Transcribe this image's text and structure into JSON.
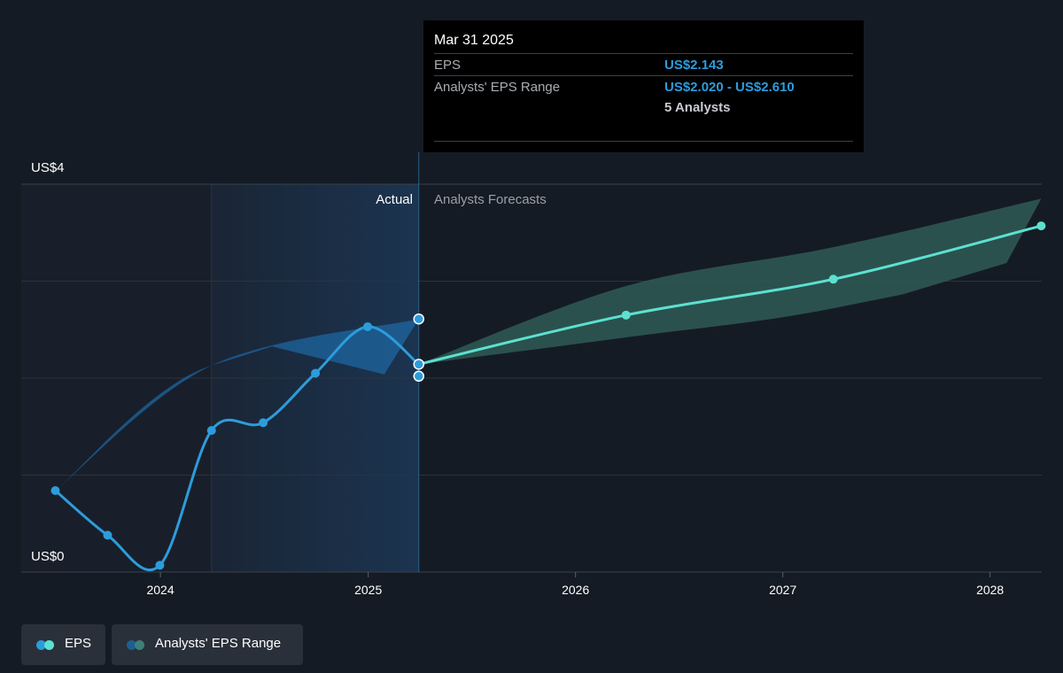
{
  "tooltip": {
    "date": "Mar 31 2025",
    "eps_label": "EPS",
    "eps_value": "US$2.143",
    "range_label": "Analysts' EPS Range",
    "range_value": "US$2.020 - US$2.610",
    "analysts": "5 Analysts"
  },
  "labels": {
    "actual": "Actual",
    "forecast": "Analysts Forecasts"
  },
  "legend": {
    "eps": "EPS",
    "range": "Analysts' EPS Range"
  },
  "colors": {
    "background": "#151b24",
    "actual_line": "#2d9cdb",
    "forecast_line": "#5ce1d0",
    "forecast_band": "#2f5a56",
    "actual_band": "#1e6aa6"
  },
  "chart_data": {
    "type": "line",
    "y_ticks": [
      "US$0",
      "US$4"
    ],
    "ylim": [
      0,
      4
    ],
    "x_ticks": [
      "2024",
      "2025",
      "2026",
      "2027",
      "2028"
    ],
    "xlim": [
      "2023-05-01",
      "2028-04-01"
    ],
    "forecast_start": "2025-03-31",
    "highlight_start": "2024-03-31",
    "series": [
      {
        "name": "EPS",
        "role": "actual",
        "points": [
          {
            "x": "2023-06-30",
            "y": 0.84
          },
          {
            "x": "2023-09-30",
            "y": 0.38
          },
          {
            "x": "2023-12-31",
            "y": 0.07
          },
          {
            "x": "2024-03-31",
            "y": 1.46
          },
          {
            "x": "2024-06-30",
            "y": 1.54
          },
          {
            "x": "2024-09-30",
            "y": 2.05
          },
          {
            "x": "2024-12-31",
            "y": 2.53
          },
          {
            "x": "2025-03-31",
            "y": 2.143
          }
        ]
      },
      {
        "name": "EPS",
        "role": "forecast",
        "points": [
          {
            "x": "2025-03-31",
            "y": 2.143
          },
          {
            "x": "2026-03-31",
            "y": 2.65
          },
          {
            "x": "2027-03-31",
            "y": 3.02
          },
          {
            "x": "2028-03-31",
            "y": 3.57
          }
        ]
      },
      {
        "name": "Analysts' EPS Range",
        "role": "past_range",
        "low": [
          {
            "x": "2023-06-30",
            "y": 0.84
          },
          {
            "x": "2024-03-31",
            "y": 2.13
          },
          {
            "x": "2025-03-31",
            "y": 2.02
          }
        ],
        "high": [
          {
            "x": "2023-06-30",
            "y": 0.84
          },
          {
            "x": "2024-03-31",
            "y": 2.13
          },
          {
            "x": "2025-03-31",
            "y": 2.61
          }
        ]
      },
      {
        "name": "Analysts' EPS Range",
        "role": "forecast_range",
        "low": [
          {
            "x": "2025-03-31",
            "y": 2.143
          },
          {
            "x": "2026-03-31",
            "y": 2.42
          },
          {
            "x": "2027-03-31",
            "y": 2.72
          },
          {
            "x": "2028-03-31",
            "y": 3.28
          }
        ],
        "high": [
          {
            "x": "2025-03-31",
            "y": 2.143
          },
          {
            "x": "2026-03-31",
            "y": 2.95
          },
          {
            "x": "2027-03-31",
            "y": 3.35
          },
          {
            "x": "2028-03-31",
            "y": 3.85
          }
        ]
      }
    ],
    "markers": [
      {
        "x": "2025-03-31",
        "y": 2.61
      },
      {
        "x": "2025-03-31",
        "y": 2.143
      },
      {
        "x": "2025-03-31",
        "y": 2.02
      }
    ]
  }
}
